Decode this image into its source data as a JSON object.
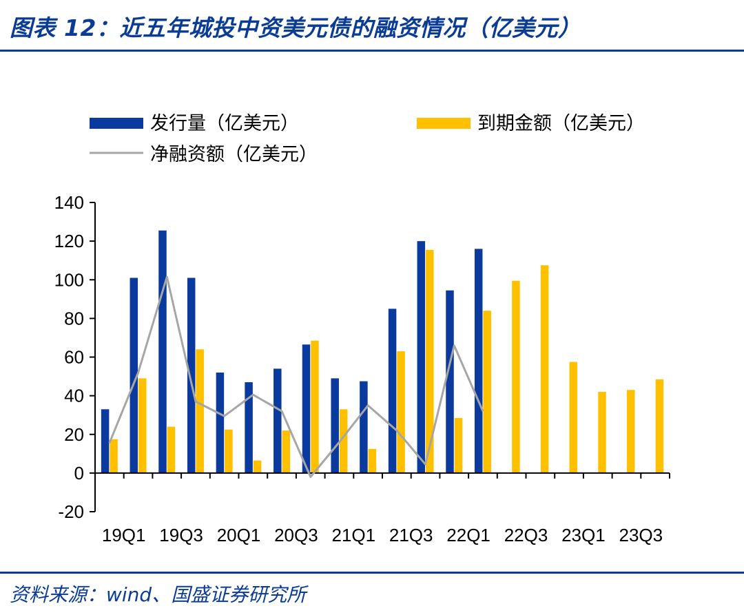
{
  "title": "图表 12：近五年城投中资美元债的融资情况（亿美元）",
  "source": "资料来源：wind、国盛证券研究所",
  "colors": {
    "issuance": "#0a3a9e",
    "maturity": "#ffc000",
    "net": "#a6a6a6",
    "accent": "#0a3c96"
  },
  "chart_data": {
    "type": "bar",
    "title": "",
    "xlabel": "",
    "ylabel": "",
    "ylim": [
      -20,
      140
    ],
    "yticks": [
      -20,
      0,
      20,
      40,
      60,
      80,
      100,
      120,
      140
    ],
    "grid": false,
    "legend_placement": "top",
    "categories": [
      "19Q1",
      "19Q2",
      "19Q3",
      "19Q4",
      "20Q1",
      "20Q2",
      "20Q3",
      "20Q4",
      "21Q1",
      "21Q2",
      "21Q3",
      "21Q4",
      "22Q1",
      "22Q2",
      "22Q3",
      "22Q4",
      "23Q1",
      "23Q2",
      "23Q3",
      "23Q4"
    ],
    "x_tick_labels": [
      "19Q1",
      "",
      "19Q3",
      "",
      "20Q1",
      "",
      "20Q3",
      "",
      "21Q1",
      "",
      "21Q3",
      "",
      "22Q1",
      "",
      "22Q3",
      "",
      "23Q1",
      "",
      "23Q3",
      ""
    ],
    "series": [
      {
        "name": "发行量（亿美元）",
        "type": "bar",
        "values": [
          33,
          101,
          125.5,
          101,
          52,
          47,
          54,
          66.5,
          49,
          47.5,
          85,
          120,
          94.5,
          116,
          null,
          null,
          null,
          null,
          null,
          null
        ]
      },
      {
        "name": "到期金额（亿美元）",
        "type": "bar",
        "values": [
          17.5,
          49,
          24,
          64,
          22.5,
          6.5,
          22,
          68.5,
          33,
          12.5,
          63,
          115.5,
          28.5,
          84,
          99.5,
          107.5,
          57.5,
          42,
          43,
          48.5
        ]
      },
      {
        "name": "净融资额（亿美元）",
        "type": "line",
        "values": [
          15.5,
          52,
          101.5,
          37,
          29.5,
          40.5,
          32,
          -2,
          16,
          35,
          22,
          4.5,
          66,
          32,
          null,
          null,
          null,
          null,
          null,
          null
        ]
      }
    ]
  }
}
